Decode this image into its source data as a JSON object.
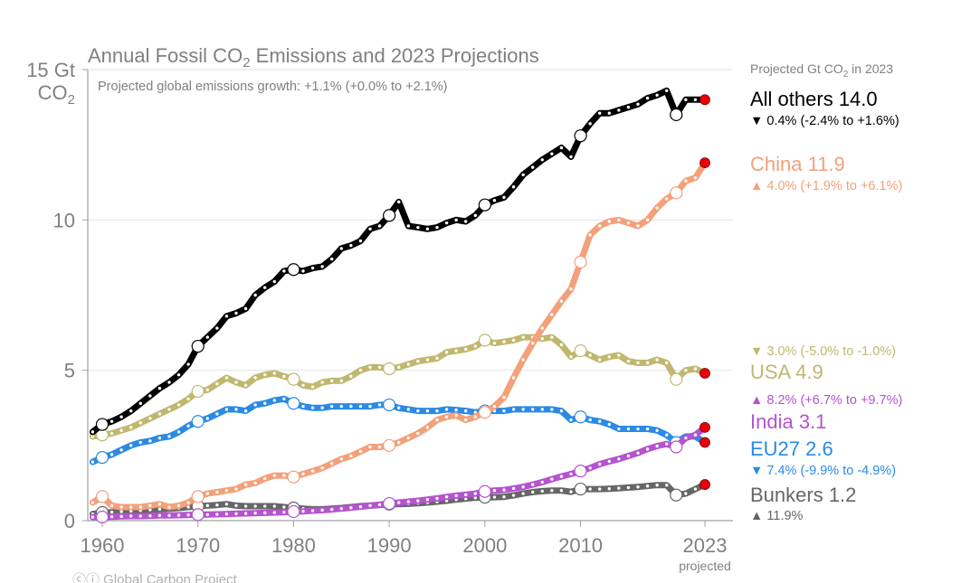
{
  "chart_data": {
    "type": "line",
    "title": "Annual Fossil CO2 Emissions and 2023 Projections",
    "title_parts": {
      "pre": "Annual Fossil CO",
      "sub": "2",
      "post": " Emissions and 2023 Projections"
    },
    "subtitle": "Projected global emissions growth: +1.1% (+0.0% to +2.1%)",
    "ylabel": {
      "line1": "15 Gt",
      "line2_pre": "CO",
      "line2_sub": "2"
    },
    "xlabel": "",
    "ylim": [
      0,
      15
    ],
    "xlim": [
      1958.5,
      2026
    ],
    "yticks": [
      0,
      5,
      10
    ],
    "xticks": [
      {
        "value": 1960,
        "label": "1960"
      },
      {
        "value": 1970,
        "label": "1970"
      },
      {
        "value": 1980,
        "label": "1980"
      },
      {
        "value": 1990,
        "label": "1990"
      },
      {
        "value": 2000,
        "label": "2000"
      },
      {
        "value": 2010,
        "label": "2010"
      },
      {
        "value": 2023,
        "label": "2023"
      }
    ],
    "xtick_note": "projected",
    "grid": "horizontal",
    "legend_placement": "right",
    "legend_heading": {
      "pre": "Projected Gt CO",
      "sub": "2",
      "post": " in 2023"
    },
    "projection_marker_color": "#e8000b",
    "x_start": 1959,
    "x_end": 2023,
    "series": [
      {
        "name": "All others",
        "label": "All others 14.0",
        "value_2023": 14.0,
        "growth": "0.4% (-2.4% to +1.6%)",
        "direction": "down",
        "color": "#000000",
        "values": [
          2.95,
          3.2,
          3.3,
          3.45,
          3.65,
          3.9,
          4.15,
          4.4,
          4.6,
          4.85,
          5.2,
          5.8,
          6.1,
          6.4,
          6.8,
          6.9,
          7.05,
          7.5,
          7.75,
          7.95,
          8.3,
          8.35,
          8.3,
          8.4,
          8.45,
          8.7,
          9.05,
          9.15,
          9.3,
          9.7,
          9.8,
          10.15,
          10.6,
          9.8,
          9.75,
          9.7,
          9.75,
          9.9,
          10.0,
          9.95,
          10.15,
          10.5,
          10.65,
          10.75,
          11.1,
          11.5,
          11.75,
          12.0,
          12.2,
          12.4,
          12.1,
          12.8,
          13.2,
          13.55,
          13.55,
          13.65,
          13.75,
          13.85,
          14.05,
          14.15,
          14.3,
          13.5,
          14.0,
          14.0,
          14.0
        ],
        "circles": [
          1960,
          1970,
          1980,
          1990,
          2000,
          2010,
          2020
        ]
      },
      {
        "name": "China",
        "label": "China 11.9",
        "value_2023": 11.9,
        "growth": "4.0% (+1.9% to +6.1%)",
        "direction": "up",
        "color": "#f4a07a",
        "values": [
          0.6,
          0.8,
          0.5,
          0.45,
          0.45,
          0.45,
          0.5,
          0.55,
          0.45,
          0.5,
          0.6,
          0.8,
          0.9,
          0.95,
          1.0,
          1.05,
          1.2,
          1.25,
          1.4,
          1.5,
          1.5,
          1.45,
          1.55,
          1.65,
          1.75,
          1.9,
          2.05,
          2.15,
          2.3,
          2.45,
          2.45,
          2.5,
          2.6,
          2.75,
          2.9,
          3.1,
          3.35,
          3.45,
          3.5,
          3.35,
          3.45,
          3.6,
          3.8,
          4.1,
          4.75,
          5.35,
          5.9,
          6.4,
          6.85,
          7.3,
          7.7,
          8.6,
          9.5,
          9.8,
          9.95,
          10.0,
          9.9,
          9.8,
          10.0,
          10.4,
          10.7,
          10.9,
          11.3,
          11.4,
          11.9
        ],
        "circles": [
          1960,
          1970,
          1980,
          1990,
          2000,
          2010,
          2020
        ]
      },
      {
        "name": "USA",
        "label": "USA 4.9",
        "value_2023": 4.9,
        "growth": "3.0% (-5.0% to -1.0%)",
        "direction": "down",
        "color": "#bfb86e",
        "values": [
          2.8,
          2.85,
          2.9,
          3.0,
          3.1,
          3.25,
          3.4,
          3.55,
          3.7,
          3.85,
          4.05,
          4.3,
          4.35,
          4.55,
          4.75,
          4.6,
          4.5,
          4.75,
          4.85,
          4.9,
          4.8,
          4.7,
          4.5,
          4.45,
          4.6,
          4.65,
          4.65,
          4.8,
          5.0,
          5.1,
          5.1,
          5.05,
          5.1,
          5.2,
          5.3,
          5.35,
          5.4,
          5.6,
          5.65,
          5.7,
          5.8,
          6.0,
          5.9,
          5.95,
          6.0,
          6.1,
          6.1,
          6.05,
          6.1,
          5.85,
          5.45,
          5.65,
          5.5,
          5.35,
          5.45,
          5.5,
          5.3,
          5.25,
          5.25,
          5.35,
          5.25,
          4.7,
          5.0,
          5.05,
          4.9
        ],
        "circles": [
          1960,
          1970,
          1980,
          1990,
          2000,
          2010,
          2020
        ]
      },
      {
        "name": "India",
        "label": "India 3.1",
        "value_2023": 3.1,
        "growth": "8.2% (+6.7% to +9.7%)",
        "direction": "up",
        "color": "#b553d0",
        "values": [
          0.12,
          0.12,
          0.13,
          0.14,
          0.15,
          0.15,
          0.16,
          0.17,
          0.17,
          0.18,
          0.19,
          0.2,
          0.2,
          0.21,
          0.22,
          0.23,
          0.24,
          0.25,
          0.26,
          0.27,
          0.28,
          0.3,
          0.31,
          0.33,
          0.35,
          0.37,
          0.4,
          0.43,
          0.46,
          0.5,
          0.53,
          0.57,
          0.6,
          0.63,
          0.66,
          0.7,
          0.74,
          0.79,
          0.83,
          0.86,
          0.9,
          0.97,
          1.0,
          1.02,
          1.07,
          1.12,
          1.2,
          1.28,
          1.38,
          1.47,
          1.55,
          1.65,
          1.75,
          1.88,
          1.97,
          2.05,
          2.15,
          2.25,
          2.38,
          2.48,
          2.55,
          2.45,
          2.75,
          2.85,
          3.1
        ],
        "circles": [
          1960,
          1970,
          1980,
          1990,
          2000,
          2010,
          2020
        ]
      },
      {
        "name": "EU27",
        "label": "EU27 2.6",
        "value_2023": 2.6,
        "growth": "7.4% (-9.9% to -4.9%)",
        "direction": "down",
        "color": "#2a8ae6",
        "values": [
          1.95,
          2.1,
          2.2,
          2.35,
          2.5,
          2.6,
          2.65,
          2.75,
          2.8,
          2.95,
          3.15,
          3.3,
          3.4,
          3.55,
          3.7,
          3.7,
          3.65,
          3.85,
          3.9,
          4.0,
          4.05,
          3.9,
          3.8,
          3.75,
          3.75,
          3.8,
          3.8,
          3.8,
          3.8,
          3.8,
          3.85,
          3.85,
          3.75,
          3.7,
          3.65,
          3.65,
          3.65,
          3.7,
          3.68,
          3.65,
          3.6,
          3.65,
          3.65,
          3.65,
          3.7,
          3.7,
          3.7,
          3.7,
          3.7,
          3.65,
          3.35,
          3.45,
          3.35,
          3.3,
          3.2,
          3.05,
          3.05,
          3.05,
          3.05,
          3.0,
          2.85,
          2.6,
          2.8,
          2.8,
          2.6
        ],
        "circles": [
          1960,
          1970,
          1980,
          1990,
          2000,
          2010,
          2020
        ]
      },
      {
        "name": "Bunkers",
        "label": "Bunkers 1.2",
        "value_2023": 1.2,
        "growth": "11.9%",
        "direction": "up",
        "color": "#666666",
        "values": [
          0.22,
          0.27,
          0.28,
          0.3,
          0.32,
          0.34,
          0.36,
          0.38,
          0.4,
          0.42,
          0.45,
          0.48,
          0.5,
          0.52,
          0.55,
          0.5,
          0.48,
          0.48,
          0.48,
          0.48,
          0.45,
          0.42,
          0.4,
          0.38,
          0.38,
          0.4,
          0.42,
          0.45,
          0.48,
          0.5,
          0.52,
          0.55,
          0.55,
          0.56,
          0.58,
          0.6,
          0.63,
          0.66,
          0.7,
          0.73,
          0.76,
          0.78,
          0.78,
          0.79,
          0.84,
          0.9,
          0.95,
          0.98,
          1.0,
          1.0,
          0.96,
          1.05,
          1.05,
          1.05,
          1.06,
          1.08,
          1.1,
          1.12,
          1.15,
          1.18,
          1.18,
          0.85,
          0.9,
          1.05,
          1.2
        ],
        "circles": [
          1960,
          1970,
          1980,
          1990,
          2000,
          2010,
          2020
        ]
      }
    ]
  },
  "credit": "Global Carbon Project"
}
